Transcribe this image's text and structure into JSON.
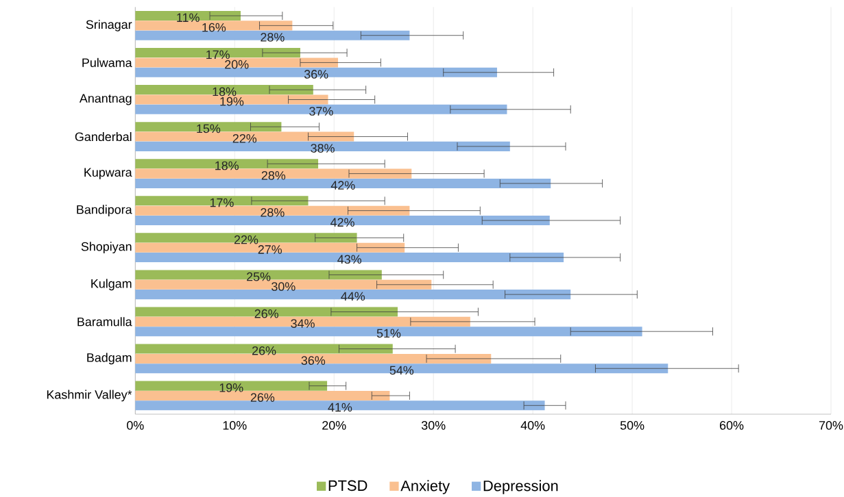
{
  "chart_data": {
    "type": "bar",
    "orientation": "horizontal",
    "categories": [
      "Srinagar",
      "Pulwama",
      "Anantnag",
      "Ganderbal",
      "Kupwara",
      "Bandipora",
      "Shopiyan",
      "Kulgam",
      "Baramulla",
      "Badgam",
      "Kashmir Valley*"
    ],
    "series": [
      {
        "name": "PTSD",
        "color": "#9bbb59",
        "values": [
          10.6,
          16.6,
          17.9,
          14.7,
          18.4,
          17.4,
          22.3,
          24.8,
          26.4,
          25.9,
          19.3
        ],
        "value_labels": [
          "11%",
          "17%",
          "18%",
          "15%",
          "18%",
          "17%",
          "22%",
          "25%",
          "26%",
          "26%",
          "19%"
        ],
        "errors": [
          [
            7.5,
            14.8
          ],
          [
            12.8,
            21.3
          ],
          [
            13.5,
            23.2
          ],
          [
            11.6,
            18.5
          ],
          [
            13.3,
            25.1
          ],
          [
            11.7,
            25.1
          ],
          [
            18.1,
            27.0
          ],
          [
            19.5,
            31.0
          ],
          [
            19.7,
            34.5
          ],
          [
            20.5,
            32.2
          ],
          [
            17.5,
            21.2
          ]
        ]
      },
      {
        "name": "Anxiety",
        "color": "#fac090",
        "values": [
          15.8,
          20.4,
          19.4,
          22.0,
          27.8,
          27.6,
          27.1,
          29.8,
          33.7,
          35.8,
          25.6
        ],
        "value_labels": [
          "16%",
          "20%",
          "19%",
          "22%",
          "28%",
          "28%",
          "27%",
          "30%",
          "34%",
          "36%",
          "26%"
        ],
        "errors": [
          [
            12.5,
            19.9
          ],
          [
            16.6,
            24.7
          ],
          [
            15.4,
            24.1
          ],
          [
            17.4,
            27.4
          ],
          [
            21.5,
            35.1
          ],
          [
            21.4,
            34.7
          ],
          [
            22.3,
            32.5
          ],
          [
            24.3,
            36.0
          ],
          [
            27.7,
            40.2
          ],
          [
            29.3,
            42.8
          ],
          [
            23.8,
            27.6
          ]
        ]
      },
      {
        "name": "Depression",
        "color": "#8eb4e3",
        "values": [
          27.6,
          36.4,
          37.4,
          37.7,
          41.8,
          41.7,
          43.1,
          43.8,
          51.0,
          53.6,
          41.2
        ],
        "value_labels": [
          "28%",
          "36%",
          "37%",
          "38%",
          "42%",
          "42%",
          "43%",
          "44%",
          "51%",
          "54%",
          "41%"
        ],
        "errors": [
          [
            22.7,
            33.0
          ],
          [
            31.0,
            42.1
          ],
          [
            31.7,
            43.8
          ],
          [
            32.4,
            43.3
          ],
          [
            36.7,
            47.0
          ],
          [
            34.9,
            48.8
          ],
          [
            37.7,
            48.8
          ],
          [
            37.2,
            50.5
          ],
          [
            43.8,
            58.1
          ],
          [
            46.3,
            60.7
          ],
          [
            39.1,
            43.3
          ]
        ]
      }
    ],
    "xlim": [
      0,
      70
    ],
    "xticks": [
      {
        "value": 0,
        "label": "0%"
      },
      {
        "value": 10,
        "label": "10%"
      },
      {
        "value": 20,
        "label": "20%"
      },
      {
        "value": 30,
        "label": "30%"
      },
      {
        "value": 40,
        "label": "40%"
      },
      {
        "value": 50,
        "label": "50%"
      },
      {
        "value": 60,
        "label": "60%"
      },
      {
        "value": 70,
        "label": "70%"
      }
    ],
    "grid": "x",
    "legend": "bottom"
  }
}
